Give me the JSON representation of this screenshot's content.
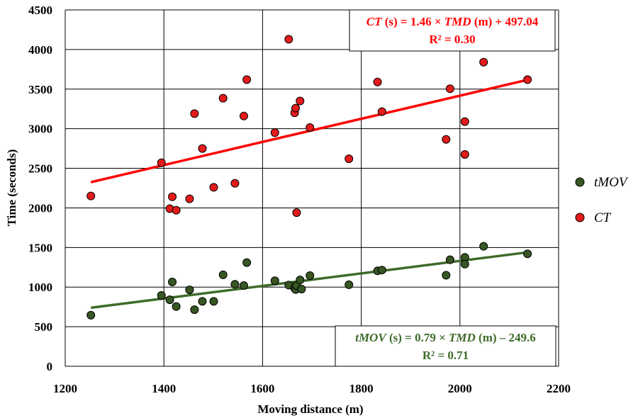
{
  "chart_data": {
    "type": "scatter",
    "xlabel": "Moving distance (m)",
    "ylabel": "Time (seconds)",
    "xlim": [
      1200,
      2200
    ],
    "ylim": [
      0,
      4500
    ],
    "xticks": [
      1200,
      1400,
      1600,
      1800,
      2000,
      2200
    ],
    "yticks": [
      0,
      500,
      1000,
      1500,
      2000,
      2500,
      3000,
      3500,
      4000,
      4500
    ],
    "grid": true,
    "legend_position": "right",
    "series": [
      {
        "name": "tMOV",
        "color": "#375623",
        "line_color": "#3e6b2a",
        "trendline": {
          "slope": 0.79,
          "intercept": -249.6,
          "x_range": [
            1252,
            2137
          ]
        },
        "equation": {
          "lhs": "tMOV",
          "text_a": " (s) = 0.79 × ",
          "var": "TMD",
          "text_b": " (m) – 249.6",
          "r2": "R² = 0.71",
          "placement": "bottom-right"
        },
        "points": [
          [
            1252,
            645
          ],
          [
            1395,
            895
          ],
          [
            1412,
            840
          ],
          [
            1417,
            1065
          ],
          [
            1425,
            755
          ],
          [
            1452,
            965
          ],
          [
            1462,
            715
          ],
          [
            1478,
            820
          ],
          [
            1501,
            820
          ],
          [
            1520,
            1155
          ],
          [
            1544,
            1035
          ],
          [
            1562,
            1020
          ],
          [
            1568,
            1310
          ],
          [
            1625,
            1080
          ],
          [
            1653,
            1025
          ],
          [
            1665,
            985
          ],
          [
            1667,
            970
          ],
          [
            1669,
            1020
          ],
          [
            1676,
            1090
          ],
          [
            1679,
            975
          ],
          [
            1696,
            1145
          ],
          [
            1775,
            1030
          ],
          [
            1833,
            1205
          ],
          [
            1842,
            1215
          ],
          [
            1972,
            1150
          ],
          [
            1980,
            1345
          ],
          [
            2010,
            1375
          ],
          [
            2010,
            1290
          ],
          [
            2048,
            1515
          ],
          [
            2137,
            1420
          ]
        ]
      },
      {
        "name": "CT",
        "color": "#e31b1b",
        "line_color": "#ff0000",
        "trendline": {
          "slope": 1.46,
          "intercept": 497.04,
          "x_range": [
            1252,
            2137
          ]
        },
        "equation": {
          "lhs": "CT",
          "text_a": " (s) = 1.46 × ",
          "var": "TMD",
          "text_b": " (m) + 497.04",
          "r2": "R² = 0.30",
          "placement": "top-right"
        },
        "points": [
          [
            1252,
            2150
          ],
          [
            1395,
            2570
          ],
          [
            1412,
            1990
          ],
          [
            1417,
            2140
          ],
          [
            1425,
            1970
          ],
          [
            1452,
            2115
          ],
          [
            1462,
            3190
          ],
          [
            1478,
            2750
          ],
          [
            1501,
            2260
          ],
          [
            1520,
            3385
          ],
          [
            1544,
            2310
          ],
          [
            1562,
            3160
          ],
          [
            1568,
            3620
          ],
          [
            1625,
            2950
          ],
          [
            1653,
            4130
          ],
          [
            1665,
            3200
          ],
          [
            1667,
            3260
          ],
          [
            1669,
            1940
          ],
          [
            1676,
            3350
          ],
          [
            1696,
            3015
          ],
          [
            1775,
            2620
          ],
          [
            1833,
            3590
          ],
          [
            1842,
            3215
          ],
          [
            1972,
            2865
          ],
          [
            1980,
            3505
          ],
          [
            2010,
            3090
          ],
          [
            2010,
            2675
          ],
          [
            2048,
            3840
          ],
          [
            2137,
            3620
          ]
        ]
      }
    ]
  }
}
